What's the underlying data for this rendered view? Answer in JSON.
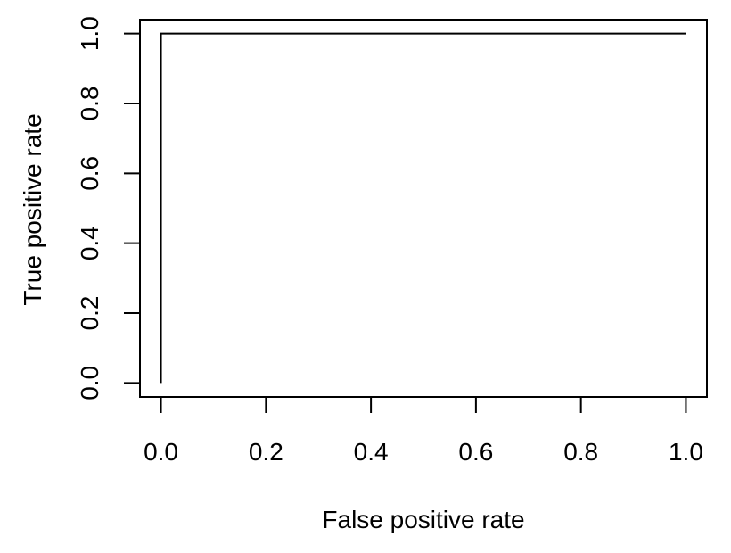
{
  "chart_data": {
    "type": "line",
    "title": "",
    "xlabel": "False positive rate",
    "ylabel": "True positive rate",
    "xlim": [
      -0.04,
      1.04
    ],
    "ylim": [
      -0.04,
      1.04
    ],
    "x_ticks": [
      0.0,
      0.2,
      0.4,
      0.6,
      0.8,
      1.0
    ],
    "y_ticks": [
      0.0,
      0.2,
      0.4,
      0.6,
      0.8,
      1.0
    ],
    "x_tick_labels": [
      "0.0",
      "0.2",
      "0.4",
      "0.6",
      "0.8",
      "1.0"
    ],
    "y_tick_labels": [
      "0.0",
      "0.2",
      "0.4",
      "0.6",
      "0.8",
      "1.0"
    ],
    "grid": false,
    "legend": "none",
    "series": [
      {
        "x": [
          0.0,
          0.0,
          1.0
        ],
        "y": [
          0.0,
          1.0,
          1.0
        ],
        "color": "#000000"
      }
    ]
  }
}
